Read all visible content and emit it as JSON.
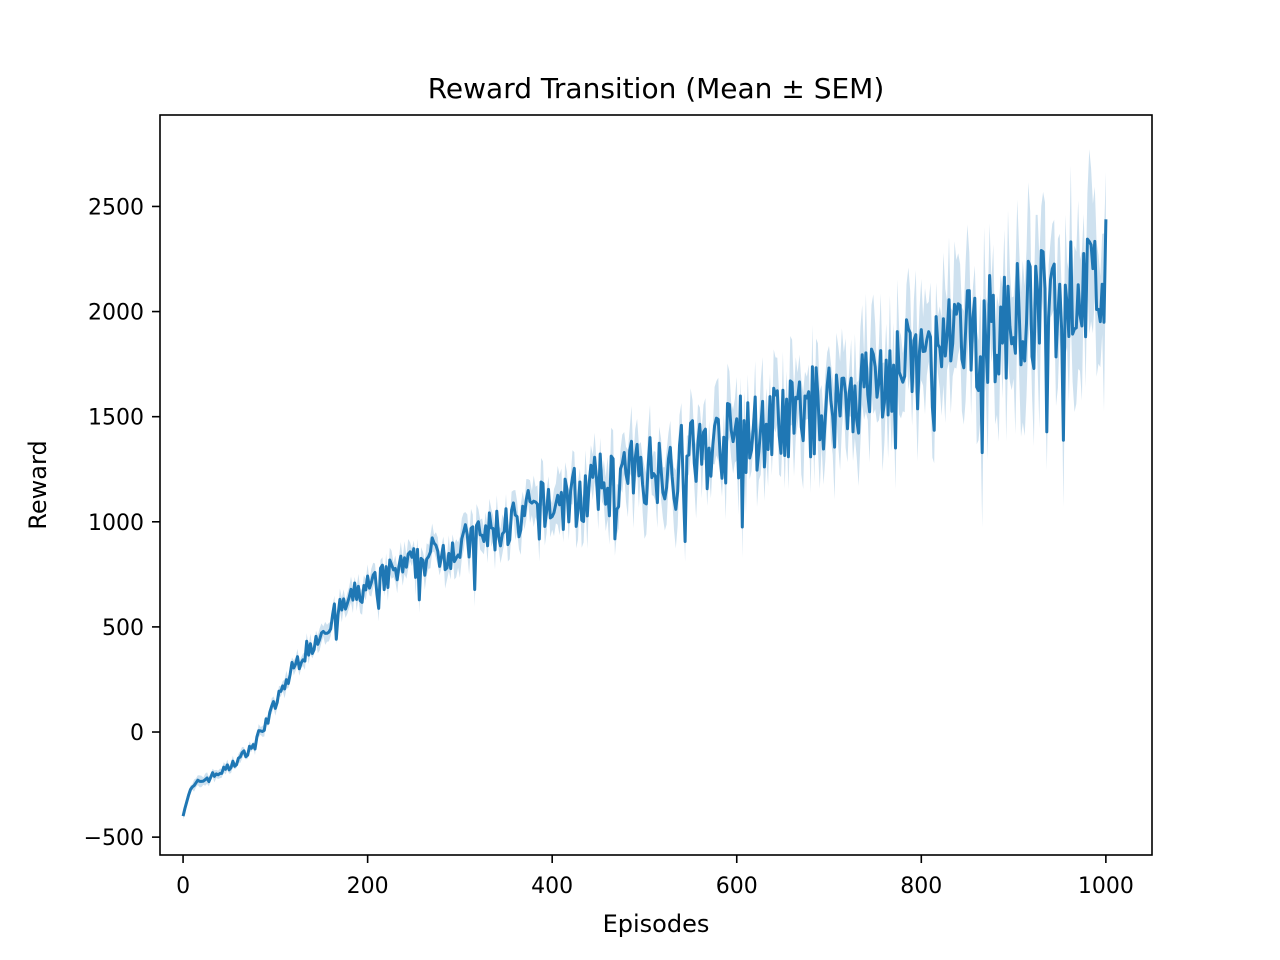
{
  "chart_data": {
    "type": "line",
    "title": "Reward Transition (Mean ± SEM)",
    "xlabel": "Episodes",
    "ylabel": "Reward",
    "xlim": [
      -25,
      1050
    ],
    "ylim": [
      -585,
      2935
    ],
    "x_ticks": [
      0,
      200,
      400,
      600,
      800,
      1000
    ],
    "x_tick_labels": [
      "0",
      "200",
      "400",
      "600",
      "800",
      "1000"
    ],
    "y_ticks": [
      -500,
      0,
      500,
      1000,
      1500,
      2000,
      2500
    ],
    "y_tick_labels": [
      "−500",
      "0",
      "500",
      "1000",
      "1500",
      "2000",
      "2500"
    ],
    "grid": false,
    "legend": "none",
    "colors": {
      "line": "#1f77b4",
      "band": "#1f77b4",
      "frame": "#000000"
    },
    "series": [
      {
        "x": [
          0,
          5,
          10,
          20,
          30,
          40,
          50,
          60,
          70,
          80,
          90,
          100,
          110,
          120,
          130,
          140,
          150,
          160,
          170,
          180,
          190,
          200,
          210,
          220,
          230,
          240,
          250,
          260,
          270,
          280,
          290,
          300,
          310,
          320,
          330,
          340,
          350,
          360,
          370,
          380,
          390,
          400,
          420,
          440,
          460,
          480,
          500,
          520,
          540,
          560,
          580,
          600,
          620,
          640,
          660,
          680,
          700,
          720,
          740,
          760,
          780,
          800,
          820,
          840,
          860,
          880,
          900,
          920,
          940,
          960,
          980,
          1000
        ],
        "values": [
          -380,
          -310,
          -270,
          -230,
          -215,
          -190,
          -170,
          -130,
          -90,
          -30,
          50,
          130,
          220,
          310,
          370,
          420,
          480,
          530,
          580,
          620,
          660,
          690,
          710,
          740,
          760,
          780,
          800,
          820,
          840,
          860,
          870,
          880,
          900,
          920,
          940,
          960,
          980,
          1000,
          1020,
          1040,
          1060,
          1080,
          1110,
          1140,
          1180,
          1210,
          1250,
          1270,
          1300,
          1330,
          1360,
          1400,
          1430,
          1460,
          1490,
          1520,
          1560,
          1600,
          1640,
          1680,
          1720,
          1760,
          1800,
          1840,
          1880,
          1920,
          1960,
          2000,
          2040,
          2080,
          2110,
          2150
        ],
        "sem": [
          20,
          20,
          20,
          20,
          20,
          20,
          20,
          20,
          20,
          20,
          25,
          25,
          30,
          30,
          30,
          35,
          35,
          40,
          40,
          40,
          45,
          45,
          50,
          50,
          55,
          55,
          60,
          60,
          60,
          65,
          65,
          70,
          70,
          75,
          75,
          80,
          80,
          85,
          85,
          90,
          90,
          95,
          100,
          105,
          110,
          115,
          120,
          125,
          130,
          135,
          140,
          145,
          150,
          155,
          160,
          170,
          175,
          180,
          190,
          195,
          200,
          210,
          220,
          230,
          240,
          250,
          260,
          270,
          280,
          290,
          300,
          300
        ],
        "noise_amplitude": [
          20,
          20,
          20,
          20,
          20,
          20,
          20,
          20,
          20,
          25,
          30,
          35,
          40,
          45,
          50,
          50,
          55,
          60,
          60,
          65,
          70,
          70,
          70,
          75,
          80,
          80,
          80,
          85,
          90,
          90,
          95,
          100,
          100,
          110,
          110,
          120,
          120,
          130,
          130,
          140,
          140,
          150,
          150,
          160,
          160,
          170,
          170,
          180,
          180,
          190,
          190,
          200,
          200,
          210,
          210,
          220,
          220,
          230,
          230,
          240,
          240,
          250,
          250,
          260,
          260,
          270,
          270,
          280,
          280,
          290,
          290,
          300
        ]
      }
    ]
  }
}
